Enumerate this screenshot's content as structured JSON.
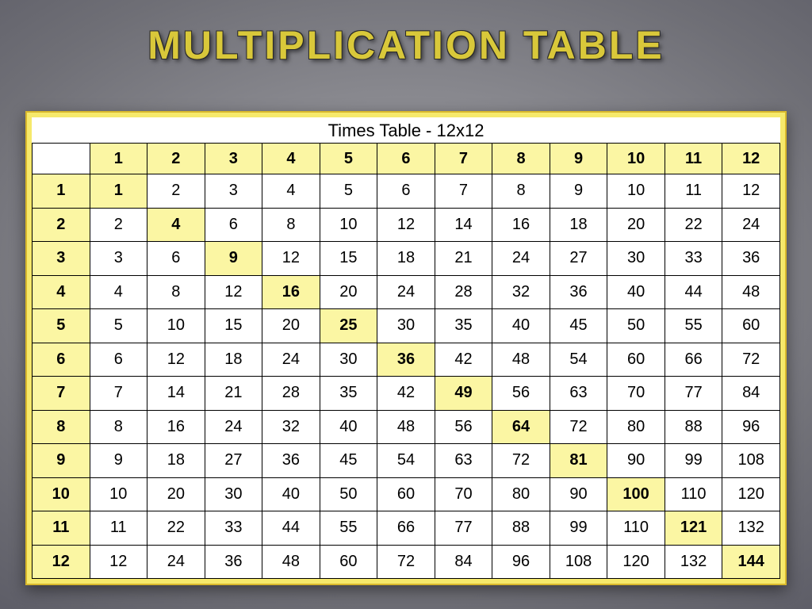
{
  "title": "MULTIPLICATION TABLE",
  "caption": "Times Table - 12x12",
  "size": 12,
  "colors": {
    "slide_bg_inner": "#9a9aa0",
    "slide_bg_outer": "#555560",
    "title_color": "#d9c83a",
    "title_outline": "#2b2b2b",
    "frame_fill": "#f6e96b",
    "frame_border": "#d8b82c",
    "table_bg": "#ffffff",
    "header_fill": "#fbf6a3",
    "diag_fill": "#fbf6a3",
    "cell_border": "#000000",
    "text_color": "#000000"
  },
  "typography": {
    "title_font": "Comic Sans MS",
    "title_size_pt": 38,
    "caption_size_pt": 17,
    "cell_size_pt": 15,
    "header_weight": "bold",
    "diag_weight": "bold"
  },
  "col_headers": [
    1,
    2,
    3,
    4,
    5,
    6,
    7,
    8,
    9,
    10,
    11,
    12
  ],
  "row_headers": [
    1,
    2,
    3,
    4,
    5,
    6,
    7,
    8,
    9,
    10,
    11,
    12
  ],
  "rows": [
    [
      1,
      2,
      3,
      4,
      5,
      6,
      7,
      8,
      9,
      10,
      11,
      12
    ],
    [
      2,
      4,
      6,
      8,
      10,
      12,
      14,
      16,
      18,
      20,
      22,
      24
    ],
    [
      3,
      6,
      9,
      12,
      15,
      18,
      21,
      24,
      27,
      30,
      33,
      36
    ],
    [
      4,
      8,
      12,
      16,
      20,
      24,
      28,
      32,
      36,
      40,
      44,
      48
    ],
    [
      5,
      10,
      15,
      20,
      25,
      30,
      35,
      40,
      45,
      50,
      55,
      60
    ],
    [
      6,
      12,
      18,
      24,
      30,
      36,
      42,
      48,
      54,
      60,
      66,
      72
    ],
    [
      7,
      14,
      21,
      28,
      35,
      42,
      49,
      56,
      63,
      70,
      77,
      84
    ],
    [
      8,
      16,
      24,
      32,
      40,
      48,
      56,
      64,
      72,
      80,
      88,
      96
    ],
    [
      9,
      18,
      27,
      36,
      45,
      54,
      63,
      72,
      81,
      90,
      99,
      108
    ],
    [
      10,
      20,
      30,
      40,
      50,
      60,
      70,
      80,
      90,
      100,
      110,
      120
    ],
    [
      11,
      22,
      33,
      44,
      55,
      66,
      77,
      88,
      99,
      110,
      121,
      132
    ],
    [
      12,
      24,
      36,
      48,
      60,
      72,
      84,
      96,
      108,
      120,
      132,
      144
    ]
  ]
}
